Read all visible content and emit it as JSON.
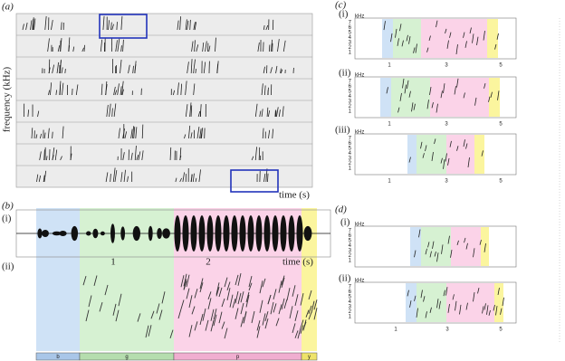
{
  "panel_a": {
    "label": "(a)",
    "ylabel": "frequency (kHz)",
    "xlabel": "time (s)"
  },
  "panel_b": {
    "label": "(b)",
    "sub_i": "(i)",
    "sub_ii": "(ii)",
    "xticks": [
      "1",
      "2"
    ],
    "xlabel": "time (s)",
    "segments": [
      "b",
      "g",
      "p",
      "y"
    ]
  },
  "panel_c": {
    "label": "(c)",
    "rows": [
      {
        "label": "(i)",
        "unit": "kHz",
        "yticks": [
          "7",
          "6",
          "5",
          "4",
          "3",
          "2",
          "1"
        ],
        "xticks": [
          "1",
          "3",
          "5"
        ]
      },
      {
        "label": "(ii)",
        "unit": "kHz",
        "yticks": [
          "7",
          "6",
          "5",
          "4",
          "3",
          "2",
          "1"
        ],
        "xticks": [
          "1",
          "3",
          "5"
        ]
      },
      {
        "label": "(iii)",
        "unit": "kHz",
        "yticks": [
          "7",
          "6",
          "5",
          "4",
          "3",
          "2",
          "1"
        ],
        "xticks": [
          "1",
          "3",
          "5"
        ]
      }
    ]
  },
  "panel_d": {
    "label": "(d)",
    "rows": [
      {
        "label": "(i)",
        "unit": "kHz",
        "yticks": [
          "7",
          "6",
          "5",
          "4",
          "3",
          "2",
          "1"
        ]
      },
      {
        "label": "(ii)",
        "unit": "kHz",
        "yticks": [
          "7",
          "6",
          "5",
          "4",
          "3",
          "2",
          "1"
        ],
        "xticks": [
          "1",
          "3",
          "5"
        ]
      }
    ]
  }
}
